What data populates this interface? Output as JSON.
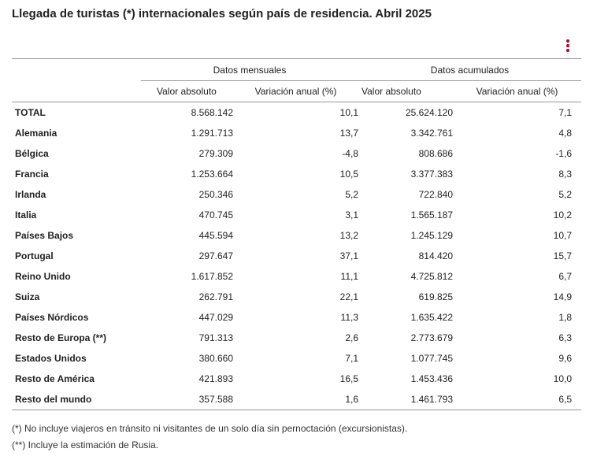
{
  "title": "Llegada de turistas (*) internacionales según país de residencia. Abril 2025",
  "menu_icon": "vertical-ellipsis-icon",
  "accent_color": "#b0002a",
  "table": {
    "groups": [
      "Datos mensuales",
      "Datos acumulados"
    ],
    "columns": [
      "Valor absoluto",
      "Variación anual (%)",
      "Valor absoluto",
      "Variación anual (%)"
    ],
    "rows": [
      {
        "country": "TOTAL",
        "values": [
          "8.568.142",
          "10,1",
          "25.624.120",
          "7,1"
        ]
      },
      {
        "country": "Alemania",
        "values": [
          "1.291.713",
          "13,7",
          "3.342.761",
          "4,8"
        ]
      },
      {
        "country": "Bélgica",
        "values": [
          "279.309",
          "-4,8",
          "808.686",
          "-1,6"
        ]
      },
      {
        "country": "Francia",
        "values": [
          "1.253.664",
          "10,5",
          "3.377.383",
          "8,3"
        ]
      },
      {
        "country": "Irlanda",
        "values": [
          "250.346",
          "5,2",
          "722.840",
          "5,2"
        ]
      },
      {
        "country": "Italia",
        "values": [
          "470.745",
          "3,1",
          "1.565.187",
          "10,2"
        ]
      },
      {
        "country": "Países Bajos",
        "values": [
          "445.594",
          "13,2",
          "1.245.129",
          "10,7"
        ]
      },
      {
        "country": "Portugal",
        "values": [
          "297.647",
          "37,1",
          "814.420",
          "15,7"
        ]
      },
      {
        "country": "Reino Unido",
        "values": [
          "1.617.852",
          "11,1",
          "4.725.812",
          "6,7"
        ]
      },
      {
        "country": "Suiza",
        "values": [
          "262.791",
          "22,1",
          "619.825",
          "14,9"
        ]
      },
      {
        "country": "Países Nórdicos",
        "values": [
          "447.029",
          "11,3",
          "1.635.422",
          "1,8"
        ]
      },
      {
        "country": "Resto de Europa (**)",
        "values": [
          "791.313",
          "2,6",
          "2.773.679",
          "6,3"
        ]
      },
      {
        "country": "Estados Unidos",
        "values": [
          "380.660",
          "7,1",
          "1.077.745",
          "9,6"
        ]
      },
      {
        "country": "Resto de América",
        "values": [
          "421.893",
          "16,5",
          "1.453.436",
          "10,0"
        ]
      },
      {
        "country": "Resto del mundo",
        "values": [
          "357.588",
          "1,6",
          "1.461.793",
          "6,5"
        ]
      }
    ]
  },
  "notes": [
    "(*) No incluye viajeros en tránsito ni visitantes de un solo día sin pernoctación (excursionistas).",
    "(**) Incluye la estimación de Rusia."
  ]
}
